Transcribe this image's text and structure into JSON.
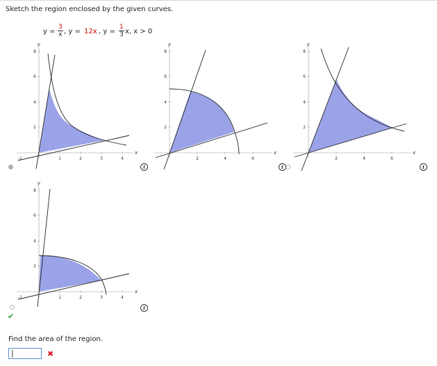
{
  "prompt": "Sketch the region enclosed by the given curves.",
  "equation": {
    "y_prefix": "y =",
    "frac1_num": "3",
    "frac1_den": "x",
    "part2_a": ", y =",
    "part2_b": "12x",
    "part2_c": ", y =",
    "frac2_num": "1",
    "frac2_den": "3",
    "part3": "x, x > 0"
  },
  "graphs": [
    {
      "name": "graph-a",
      "y_label": "y",
      "x_label": "x",
      "x_ticks": [
        "1",
        "2",
        "3",
        "4"
      ],
      "neg_tick": "-1",
      "y_ticks": [
        "2",
        "4",
        "6",
        "8"
      ],
      "selected": true
    },
    {
      "name": "graph-b",
      "y_label": "y",
      "x_label": "x",
      "x_ticks": [
        "2",
        "4",
        "6"
      ],
      "neg_tick": "",
      "y_ticks": [
        "2",
        "4",
        "6",
        "8"
      ],
      "selected": false
    },
    {
      "name": "graph-c",
      "y_label": "y",
      "x_label": "x",
      "x_ticks": [
        "2",
        "4",
        "6"
      ],
      "neg_tick": "",
      "y_ticks": [
        "2",
        "4",
        "6",
        "8"
      ],
      "selected": false
    },
    {
      "name": "graph-d",
      "y_label": "y",
      "x_label": "x",
      "x_ticks": [
        "1",
        "2",
        "3",
        "4"
      ],
      "neg_tick": "-1",
      "y_ticks": [
        "2",
        "4",
        "6",
        "8"
      ],
      "selected": false
    }
  ],
  "info_icon_label": "i",
  "find_area": "Find the area of the region.",
  "answer_value": "|",
  "colors": {
    "region": "#9ba3e8",
    "accent_red": "#d00000",
    "check": "#2aa02a",
    "wrong": "#e0202a"
  },
  "icons": [
    "info-icon",
    "check-icon",
    "x-mark-icon"
  ]
}
